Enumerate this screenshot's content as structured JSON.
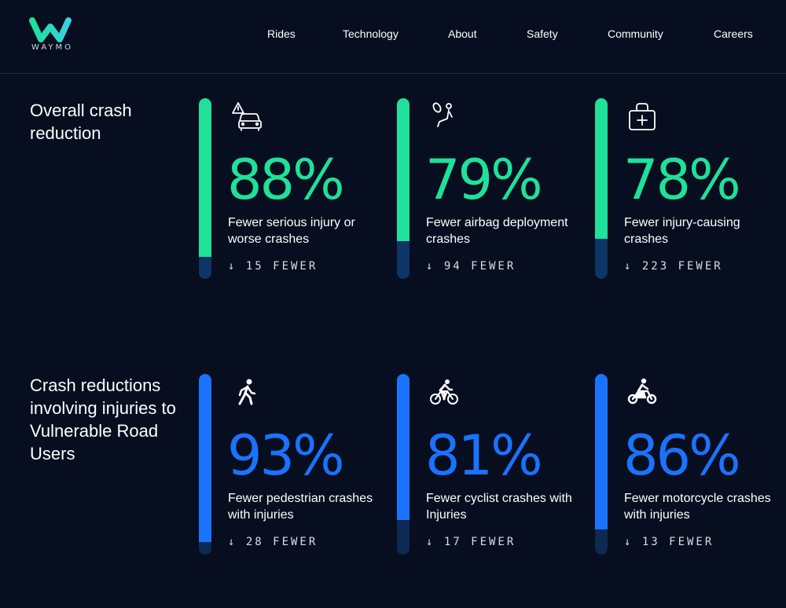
{
  "header": {
    "logo_text": "WAYMO",
    "nav": [
      "Rides",
      "Technology",
      "About",
      "Safety",
      "Community",
      "Careers"
    ]
  },
  "colors": {
    "background": "#070e1f",
    "green": "#1fe19a",
    "blue": "#1a73ff",
    "bar_track_green": "#0d3566",
    "bar_track_blue": "#0d2a52"
  },
  "sections": [
    {
      "title": "Overall crash reduction",
      "cards": [
        {
          "icon": "car-warning-icon",
          "percent": "88%",
          "level": 0.88,
          "description": "Fewer serious injury or worse crashes",
          "fewer": "↓ 15 FEWER"
        },
        {
          "icon": "airbag-icon",
          "percent": "79%",
          "level": 0.79,
          "description": "Fewer airbag deployment crashes",
          "fewer": "↓ 94 FEWER"
        },
        {
          "icon": "medical-bag-icon",
          "percent": "78%",
          "level": 0.78,
          "description": "Fewer injury-causing crashes",
          "fewer": "↓ 223 FEWER"
        }
      ]
    },
    {
      "title": "Crash reductions involving injuries to Vulnerable Road Users",
      "cards": [
        {
          "icon": "pedestrian-icon",
          "percent": "93%",
          "level": 0.93,
          "description": "Fewer pedestrian crashes with injuries",
          "fewer": "↓ 28 FEWER"
        },
        {
          "icon": "cyclist-icon",
          "percent": "81%",
          "level": 0.81,
          "description": "Fewer cyclist crashes with Injuries",
          "fewer": "↓ 17 FEWER"
        },
        {
          "icon": "motorcycle-icon",
          "percent": "86%",
          "level": 0.86,
          "description": "Fewer motorcycle crashes with injuries",
          "fewer": "↓ 13 FEWER"
        }
      ]
    }
  ]
}
